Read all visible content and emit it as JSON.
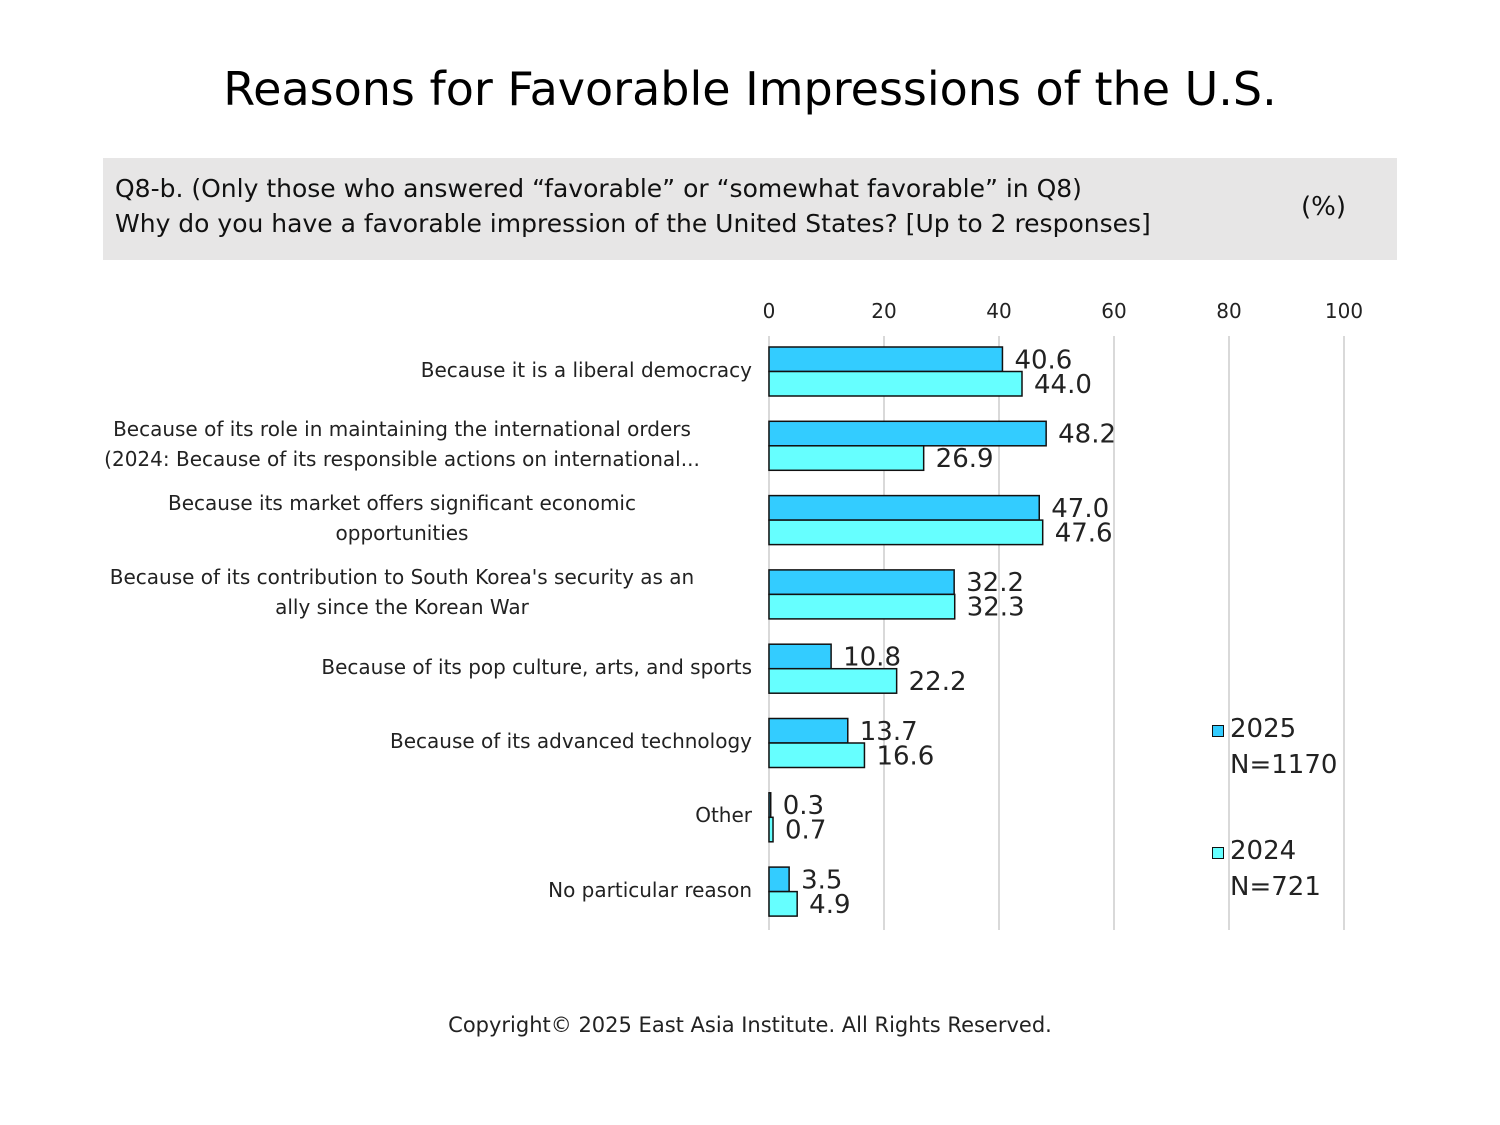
{
  "title": "Reasons for Favorable Impressions of the U.S.",
  "question": {
    "line1": "Q8-b. (Only those who answered “favorable” or “somewhat favorable” in Q8)",
    "line2": "Why do you have a favorable impression of the United States? [Up to 2 responses]",
    "unit": "(%)"
  },
  "colors": {
    "series_2025": "#33ccff",
    "series_2024": "#66ffff",
    "bar_outline": "#111111",
    "gridline": "#d9d9d9",
    "question_box": "#e7e6e6"
  },
  "chart_data": {
    "type": "bar",
    "orientation": "horizontal",
    "categories": [
      [
        "Because it is a liberal democracy"
      ],
      [
        "Because of its role in maintaining the international orders",
        "(2024: Because of its responsible actions on international..."
      ],
      [
        "Because its market offers significant economic",
        "opportunities"
      ],
      [
        "Because of its contribution to South Korea's security as an",
        "ally since the Korean War"
      ],
      [
        "Because of its pop culture, arts, and sports"
      ],
      [
        "Because of its advanced technology"
      ],
      [
        "Other"
      ],
      [
        "No particular reason"
      ]
    ],
    "series": [
      {
        "name": "2025",
        "sample": "N=1170",
        "values": [
          40.6,
          48.2,
          47.0,
          32.2,
          10.8,
          13.7,
          0.3,
          3.5
        ]
      },
      {
        "name": "2024",
        "sample": "N=721",
        "values": [
          44.0,
          26.9,
          47.6,
          32.3,
          22.2,
          16.6,
          0.7,
          4.9
        ]
      }
    ],
    "xlim": [
      0,
      100
    ],
    "xticks": [
      0,
      20,
      40,
      60,
      80,
      100
    ],
    "axis_position": "top",
    "grid": true,
    "legend_placement": "right"
  },
  "copyright": "Copyright© 2025 East Asia Institute. All Rights Reserved."
}
